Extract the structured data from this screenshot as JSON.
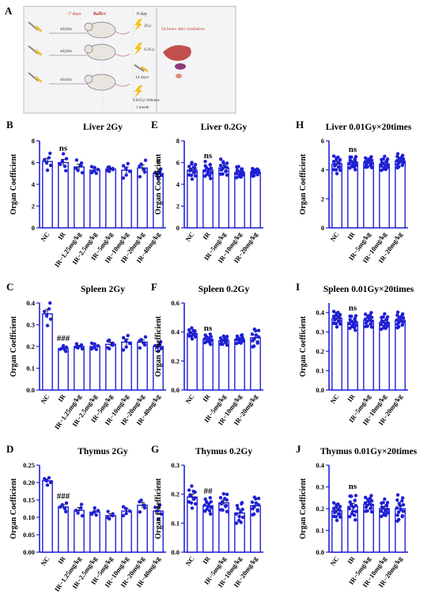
{
  "schematic": {
    "panel_letter": "A",
    "row1": {
      "day_before": "-7 days",
      "balb": "Balb/c",
      "day0": "0 day",
      "drug": "silybin",
      "dose": "2Gy"
    },
    "row2": {
      "drug": "silybin",
      "dose": "0.2Gy"
    },
    "row3": {
      "drug": "silybin",
      "days": "14 days",
      "dose": "0.01Gy×20times",
      "duration": "1 month"
    },
    "outcome": "24 hours after irradiation"
  },
  "chart_data": [
    {
      "panel": "B",
      "type": "bar",
      "title": "Liver 2Gy",
      "ylabel": "Organ Coefficient",
      "xlabel": "",
      "categories": [
        "NC",
        "IR",
        "IR−1.25mg/kg",
        "IR−2.5mg/kg",
        "IR−5mg/kg",
        "IR−10mg/kg",
        "IR−20mg/kg",
        "IR−40mg/kg"
      ],
      "values": [
        6.1,
        6.0,
        5.6,
        5.3,
        5.4,
        5.3,
        5.5,
        5.0
      ],
      "errors": [
        0.3,
        0.3,
        0.25,
        0.15,
        0.1,
        0.3,
        0.3,
        0.15
      ],
      "n_points": 6,
      "ylim": [
        0,
        8
      ],
      "yticks": [
        0,
        2,
        4,
        6,
        8
      ],
      "annotations": [
        {
          "category": "IR",
          "text": "ns"
        },
        {
          "category": "IR−40mg/kg",
          "text": "*"
        }
      ]
    },
    {
      "panel": "E",
      "type": "bar",
      "title": "Liver 0.2Gy",
      "ylabel": "Organ Coefficient",
      "xlabel": "",
      "categories": [
        "NC",
        "IR",
        "IR−5mg/kg",
        "IR−10mg/kg",
        "IR−20mg/kg"
      ],
      "values": [
        5.3,
        5.3,
        5.5,
        5.1,
        5.1
      ],
      "errors": [
        0.2,
        0.2,
        0.2,
        0.15,
        0.1
      ],
      "n_points": 14,
      "ylim": [
        0,
        8
      ],
      "yticks": [
        0,
        2,
        4,
        6,
        8
      ],
      "annotations": [
        {
          "category": "IR",
          "text": "ns"
        }
      ]
    },
    {
      "panel": "H",
      "type": "bar",
      "title": "Liver 0.01Gy×20times",
      "ylabel": "Organ Coefficient",
      "xlabel": "",
      "categories": [
        "NC",
        "IR",
        "IR−5mg/kg",
        "IR−10mg/kg",
        "IR−20mg/kg"
      ],
      "values": [
        4.4,
        4.5,
        4.5,
        4.4,
        4.6
      ],
      "errors": [
        0.15,
        0.12,
        0.1,
        0.12,
        0.12
      ],
      "n_points": 16,
      "ylim": [
        0,
        6
      ],
      "yticks": [
        0,
        2,
        4,
        6
      ],
      "annotations": [
        {
          "category": "IR",
          "text": "ns"
        }
      ]
    },
    {
      "panel": "C",
      "type": "bar",
      "title": "Spleen 2Gy",
      "ylabel": "Organ Coefficient",
      "xlabel": "",
      "categories": [
        "NC",
        "IR",
        "IR−1.25mg/kg",
        "IR−2.5mg/kg",
        "IR−5mg/kg",
        "IR−10mg/kg",
        "IR−20mg/kg",
        "IR−40mg/kg"
      ],
      "values": [
        0.35,
        0.19,
        0.2,
        0.2,
        0.21,
        0.22,
        0.22,
        0.2
      ],
      "errors": [
        0.02,
        0.005,
        0.005,
        0.007,
        0.01,
        0.015,
        0.01,
        0.008
      ],
      "n_points": 6,
      "ylim": [
        0,
        0.4
      ],
      "yticks": [
        0.0,
        0.1,
        0.2,
        0.3,
        0.4
      ],
      "annotations": [
        {
          "category": "IR",
          "text": "###"
        }
      ]
    },
    {
      "panel": "F",
      "type": "bar",
      "title": "Spleen 0.2Gy",
      "ylabel": "Organ Coefficient",
      "xlabel": "",
      "categories": [
        "NC",
        "IR",
        "IR−5mg/kg",
        "IR−10mg/kg",
        "IR−20mg/kg"
      ],
      "values": [
        0.39,
        0.35,
        0.34,
        0.35,
        0.36
      ],
      "errors": [
        0.01,
        0.01,
        0.01,
        0.01,
        0.02
      ],
      "n_points": 12,
      "ylim": [
        0,
        0.6
      ],
      "yticks": [
        0.0,
        0.2,
        0.4,
        0.6
      ],
      "annotations": [
        {
          "category": "IR",
          "text": "ns"
        }
      ]
    },
    {
      "panel": "I",
      "type": "bar",
      "title": "Spleen 0.01Gy×20times",
      "ylabel": "Organ Coefficient",
      "xlabel": "",
      "categories": [
        "NC",
        "IR",
        "IR−5mg/kg",
        "IR−10mg/kg",
        "IR−20mg/kg"
      ],
      "values": [
        0.37,
        0.35,
        0.36,
        0.35,
        0.36
      ],
      "errors": [
        0.01,
        0.01,
        0.01,
        0.01,
        0.01
      ],
      "n_points": 16,
      "ylim": [
        0,
        0.45
      ],
      "yticks": [
        0.0,
        0.1,
        0.2,
        0.3,
        0.4
      ],
      "annotations": [
        {
          "category": "IR",
          "text": "ns"
        }
      ]
    },
    {
      "panel": "D",
      "type": "bar",
      "title": "Thymus 2Gy",
      "ylabel": "Organ Coefficient",
      "xlabel": "",
      "categories": [
        "NC",
        "IR",
        "IR−1.25mg/kg",
        "IR−2.5mg/kg",
        "IR−5mg/kg",
        "IR−10mg/kg",
        "IR−20mg/kg",
        "IR−40mg/kg"
      ],
      "values": [
        0.205,
        0.13,
        0.12,
        0.115,
        0.105,
        0.118,
        0.135,
        0.118
      ],
      "errors": [
        0.005,
        0.006,
        0.008,
        0.005,
        0.005,
        0.006,
        0.008,
        0.01
      ],
      "n_points": 5,
      "ylim": [
        0,
        0.25
      ],
      "yticks": [
        0.0,
        0.05,
        0.1,
        0.15,
        0.2,
        0.25
      ],
      "annotations": [
        {
          "category": "IR",
          "text": "###"
        }
      ]
    },
    {
      "panel": "G",
      "type": "bar",
      "title": "Thymus 0.2Gy",
      "ylabel": "Organ Coefficient",
      "xlabel": "",
      "categories": [
        "NC",
        "IR",
        "IR−5mg/kg",
        "IR−10mg/kg",
        "IR−20mg/kg"
      ],
      "values": [
        0.19,
        0.16,
        0.17,
        0.135,
        0.16
      ],
      "errors": [
        0.01,
        0.008,
        0.01,
        0.012,
        0.01
      ],
      "n_points": 12,
      "ylim": [
        0,
        0.3
      ],
      "yticks": [
        0.0,
        0.1,
        0.2,
        0.3
      ],
      "annotations": [
        {
          "category": "IR",
          "text": "##"
        }
      ]
    },
    {
      "panel": "J",
      "type": "bar",
      "title": "Thymus 0.01Gy×20times",
      "ylabel": "Organ Coefficient",
      "xlabel": "",
      "categories": [
        "NC",
        "IR",
        "IR−5mg/kg",
        "IR−10mg/kg",
        "IR−20mg/kg"
      ],
      "values": [
        0.19,
        0.21,
        0.22,
        0.2,
        0.2
      ],
      "errors": [
        0.01,
        0.015,
        0.01,
        0.01,
        0.015
      ],
      "n_points": 16,
      "ylim": [
        0,
        0.4
      ],
      "yticks": [
        0.0,
        0.1,
        0.2,
        0.3,
        0.4
      ],
      "annotations": [
        {
          "category": "IR",
          "text": "ns"
        }
      ]
    }
  ],
  "colors": {
    "bar_edge": "#1f1fd6",
    "dot": "#1f1fd6",
    "axis": "#1f1fd6",
    "text": "#000000"
  }
}
